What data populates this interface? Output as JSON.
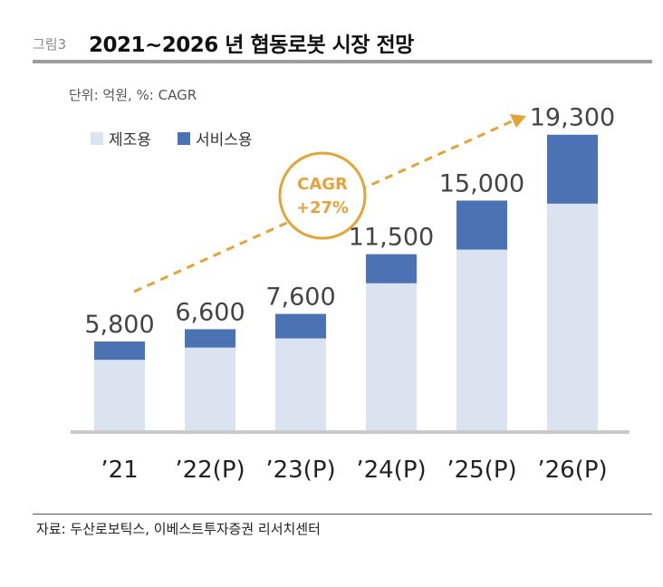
{
  "header": {
    "label": "그림3",
    "title": "2021~2026 년 협동로봇 시장 전망"
  },
  "chart_data": {
    "type": "bar",
    "stacked": true,
    "unit_label": "단위: 억원, %: CAGR",
    "categories": [
      "’21",
      "’22(P)",
      "’23(P)",
      "’24(P)",
      "’25(P)",
      "’26(P)"
    ],
    "series": [
      {
        "name": "제조용",
        "values": [
          4600,
          5400,
          6000,
          9600,
          11800,
          14800
        ]
      },
      {
        "name": "서비스용",
        "values": [
          1200,
          1200,
          1600,
          1900,
          3200,
          4500
        ]
      }
    ],
    "totals": [
      5800,
      6600,
      7600,
      11500,
      15000,
      19300
    ],
    "total_labels": [
      "5,800",
      "6,600",
      "7,600",
      "11,500",
      "15,000",
      "19,300"
    ],
    "ylim": [
      0,
      21000
    ],
    "grid": false,
    "legend": "top-left",
    "annotation": {
      "line1": "CAGR",
      "line2": "+27%"
    }
  },
  "colors": {
    "manufacturing": "#dce3f0",
    "service": "#4b72b2",
    "cagr": "#e3a43a",
    "axis": "#c9c9c9"
  },
  "source": "자료: 두산로보틱스, 이베스트투자증권 리서치센터"
}
